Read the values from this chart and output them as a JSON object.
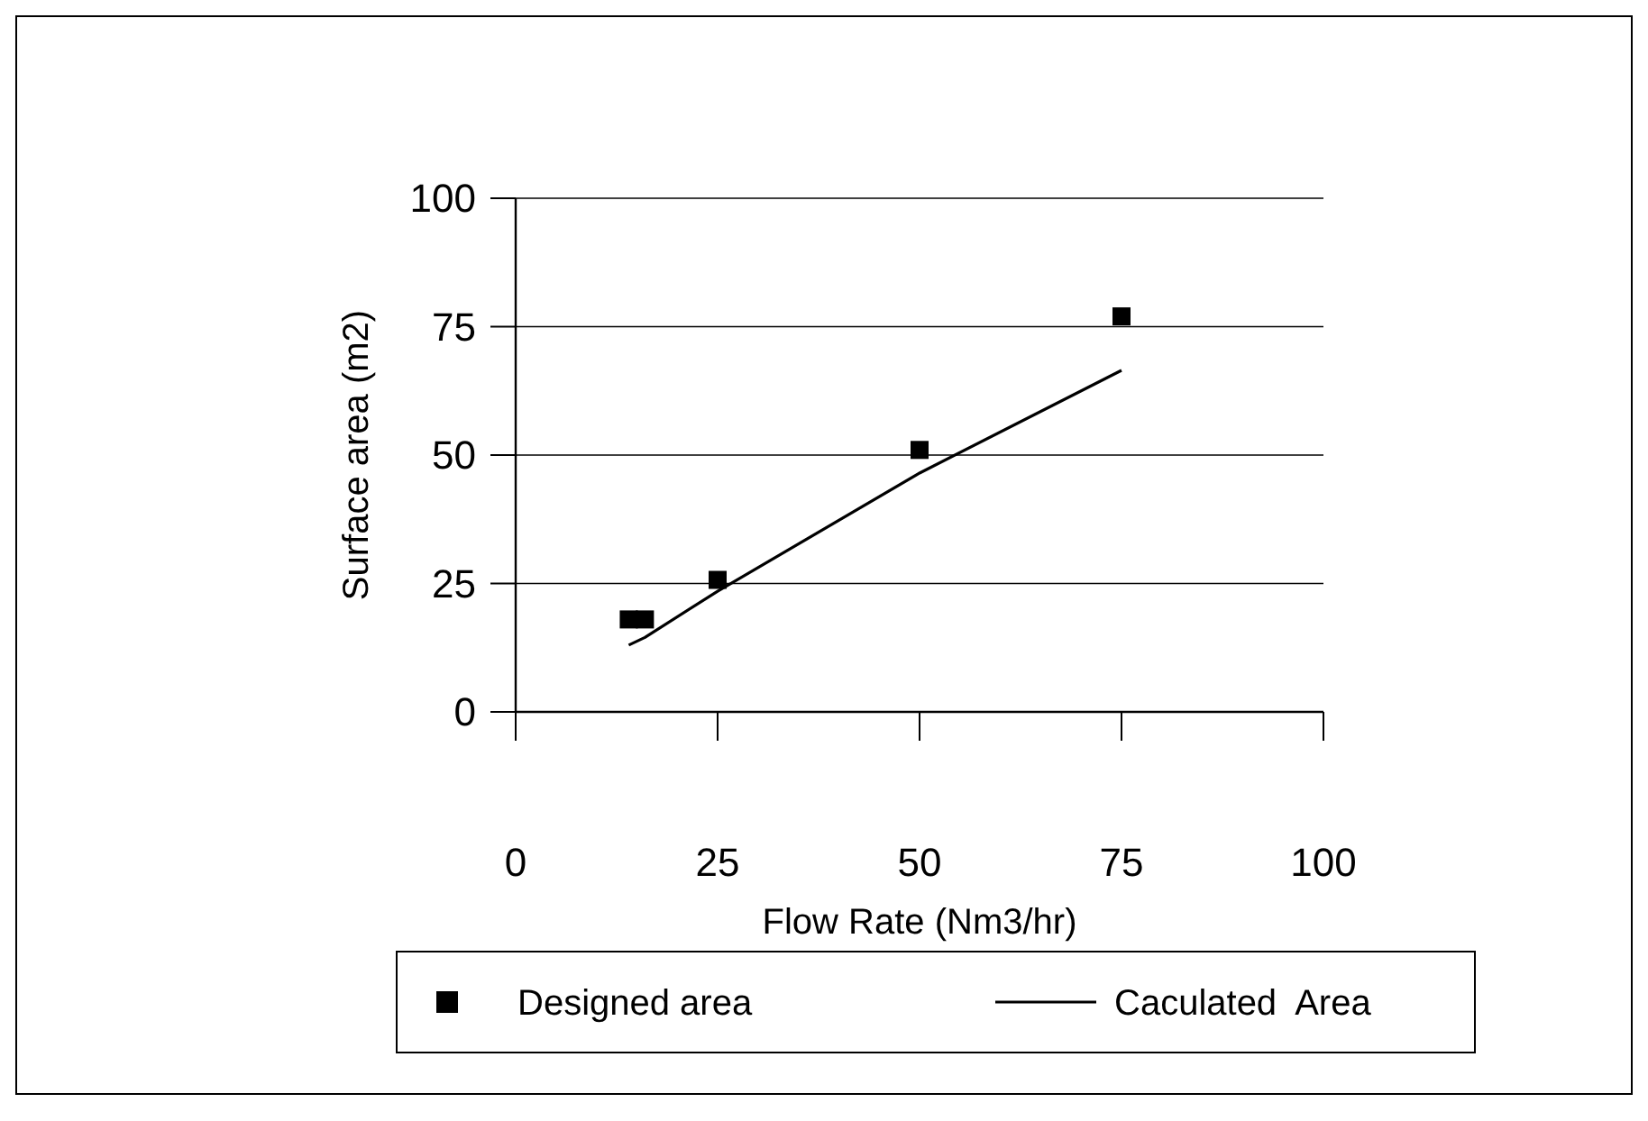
{
  "chart_data": {
    "type": "scatter",
    "xlabel": "Flow Rate (Nm3/hr)",
    "ylabel": "Surface area (m2)",
    "xlim": [
      0,
      100
    ],
    "xticks": [
      0,
      25,
      50,
      75,
      100
    ],
    "ylim": [
      0,
      100
    ],
    "yticks": [
      0,
      25,
      50,
      75,
      100
    ],
    "grid": "y",
    "legend": "bottom",
    "series": [
      {
        "name": "Designed area",
        "marker": "square",
        "color": "#000000",
        "x": [
          14,
          16,
          25,
          50,
          75
        ],
        "values": [
          18,
          18,
          25.7,
          51,
          77
        ]
      },
      {
        "name": "Caculated  Area",
        "type": "line",
        "marker": "none",
        "line_style": "solid",
        "color": "#000000",
        "x": [
          14,
          16,
          25,
          50,
          75
        ],
        "values": [
          13,
          14.5,
          23.5,
          46.5,
          66.5
        ]
      }
    ]
  }
}
